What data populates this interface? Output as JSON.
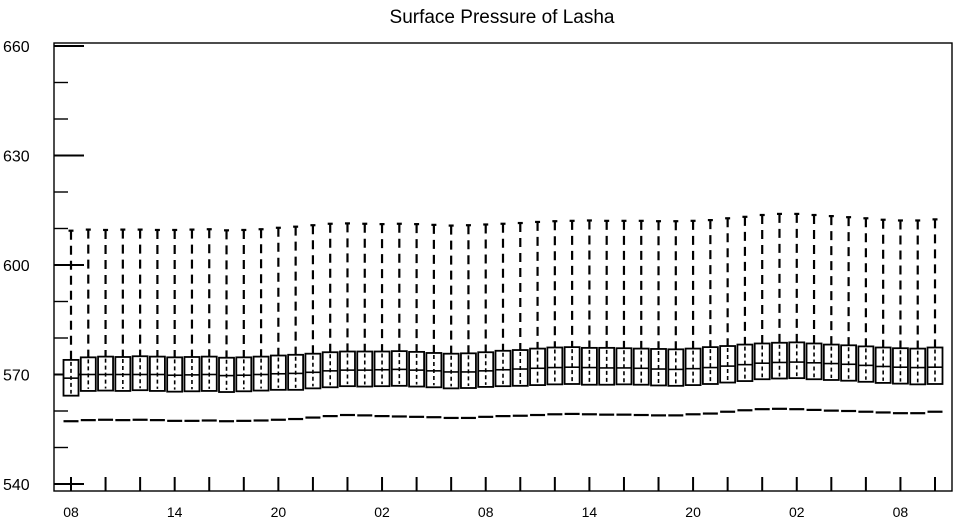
{
  "chart_data": {
    "type": "box",
    "title": "Surface Pressure of Lasha",
    "xlabel": "",
    "ylabel": "",
    "ylim": [
      540,
      660
    ],
    "yticks": [
      540,
      570,
      600,
      630,
      660
    ],
    "xtick_labels": [
      "08",
      "14",
      "20",
      "02",
      "08",
      "14",
      "20",
      "02",
      "08"
    ],
    "grid": false,
    "legend": "none",
    "series": [
      {
        "values_q1": [
          564.2,
          565.5,
          565.6,
          565.5,
          565.7,
          565.5,
          565.3,
          565.4,
          565.5,
          565.2,
          565.4,
          565.6,
          565.8,
          565.8,
          566.2,
          566.5,
          566.8,
          566.7,
          566.8,
          566.9,
          566.7,
          566.5,
          566.2,
          566.3,
          566.6,
          566.8,
          566.9,
          567.1,
          567.3,
          567.4,
          567.2,
          567.2,
          567.3,
          567.2,
          567.0,
          566.9,
          567.1,
          567.4,
          567.8,
          568.2,
          568.7,
          568.9,
          569.0,
          568.7,
          568.5,
          568.3,
          568.0,
          567.7,
          567.5,
          567.3,
          567.4
        ],
        "values_median": [
          569.0,
          570.0,
          570.0,
          570.0,
          570.0,
          570.0,
          569.8,
          569.9,
          570.0,
          569.7,
          569.8,
          570.0,
          570.2,
          570.3,
          570.6,
          571.0,
          571.2,
          571.2,
          571.3,
          571.4,
          571.2,
          571.0,
          570.7,
          570.7,
          571.0,
          571.3,
          571.5,
          571.7,
          571.9,
          572.0,
          571.9,
          571.8,
          571.8,
          571.7,
          571.5,
          571.4,
          571.6,
          571.9,
          572.3,
          572.7,
          573.1,
          573.3,
          573.4,
          573.2,
          573.0,
          572.8,
          572.5,
          572.2,
          572.0,
          571.9,
          572.0
        ],
        "values_q3": [
          574.0,
          574.7,
          574.9,
          574.8,
          575.0,
          574.9,
          574.7,
          574.8,
          574.9,
          574.6,
          574.7,
          574.9,
          575.2,
          575.4,
          575.7,
          576.1,
          576.3,
          576.3,
          576.3,
          576.4,
          576.2,
          575.9,
          575.7,
          575.8,
          576.1,
          576.5,
          576.7,
          577.1,
          577.4,
          577.5,
          577.3,
          577.3,
          577.2,
          577.1,
          577.0,
          576.9,
          577.1,
          577.5,
          577.8,
          578.2,
          578.5,
          578.7,
          578.8,
          578.5,
          578.2,
          578.0,
          577.7,
          577.4,
          577.2,
          577.1,
          577.4
        ],
        "values_max": [
          609.4,
          609.7,
          609.6,
          609.7,
          609.7,
          609.6,
          609.6,
          609.7,
          609.8,
          609.5,
          609.6,
          609.8,
          610.2,
          610.5,
          610.9,
          611.3,
          611.4,
          611.3,
          611.2,
          611.3,
          611.2,
          611.0,
          610.8,
          610.9,
          611.1,
          611.3,
          611.5,
          611.8,
          612.0,
          612.1,
          612.2,
          612.1,
          612.1,
          612.1,
          612.0,
          612.0,
          612.1,
          612.3,
          612.8,
          613.2,
          613.7,
          614.0,
          614.0,
          613.7,
          613.4,
          613.1,
          612.8,
          612.4,
          612.2,
          612.2,
          612.5
        ],
        "values_min": [
          557.2,
          557.5,
          557.6,
          557.5,
          557.6,
          557.5,
          557.3,
          557.3,
          557.4,
          557.2,
          557.3,
          557.4,
          557.6,
          557.8,
          558.2,
          558.6,
          558.9,
          558.8,
          558.6,
          558.5,
          558.4,
          558.3,
          558.1,
          558.1,
          558.4,
          558.6,
          558.7,
          558.9,
          559.1,
          559.2,
          559.1,
          559.0,
          559.0,
          558.9,
          558.8,
          558.8,
          559.1,
          559.3,
          559.8,
          560.2,
          560.5,
          560.6,
          560.5,
          560.3,
          560.1,
          560.0,
          559.8,
          559.6,
          559.4,
          559.4,
          559.8
        ]
      }
    ]
  },
  "colors": {
    "stroke": "#000000",
    "background": "#ffffff"
  }
}
